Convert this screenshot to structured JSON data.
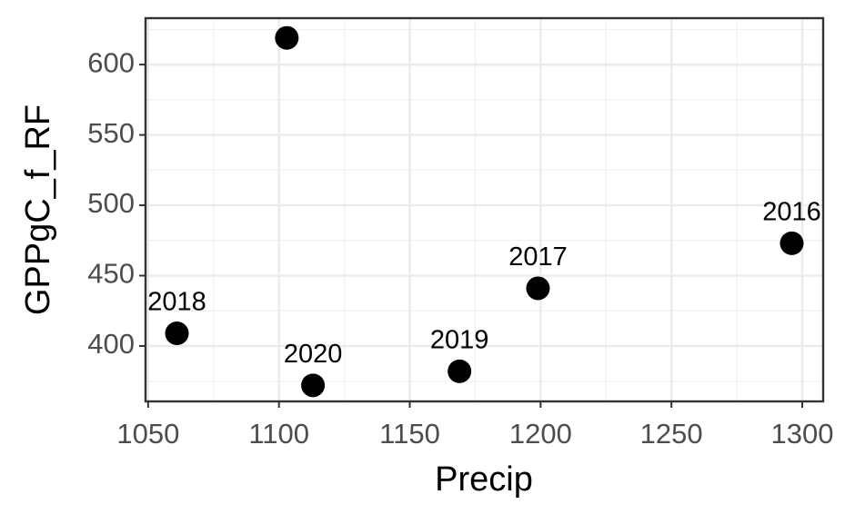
{
  "chart_data": {
    "type": "scatter",
    "x_label": "Precip",
    "y_label": "GPPgC_f_RF",
    "x": [
      1061,
      1103,
      1113,
      1169,
      1199,
      1296
    ],
    "values": [
      409,
      619,
      372,
      382,
      441,
      473
    ],
    "labels": [
      "2018",
      null,
      "2020",
      "2019",
      "2017",
      "2016"
    ],
    "color": "#000000",
    "xlim": [
      1049,
      1308
    ],
    "ylim": [
      360.6,
      633
    ],
    "xticks": [
      1050,
      1100,
      1150,
      1200,
      1250,
      1300
    ],
    "yticks": [
      400,
      450,
      500,
      550,
      600
    ],
    "x_minor_grid": [
      1075,
      1125,
      1175,
      1225,
      1275
    ],
    "y_minor_grid": [
      375,
      425,
      475,
      525,
      575,
      625
    ],
    "grid": true
  }
}
